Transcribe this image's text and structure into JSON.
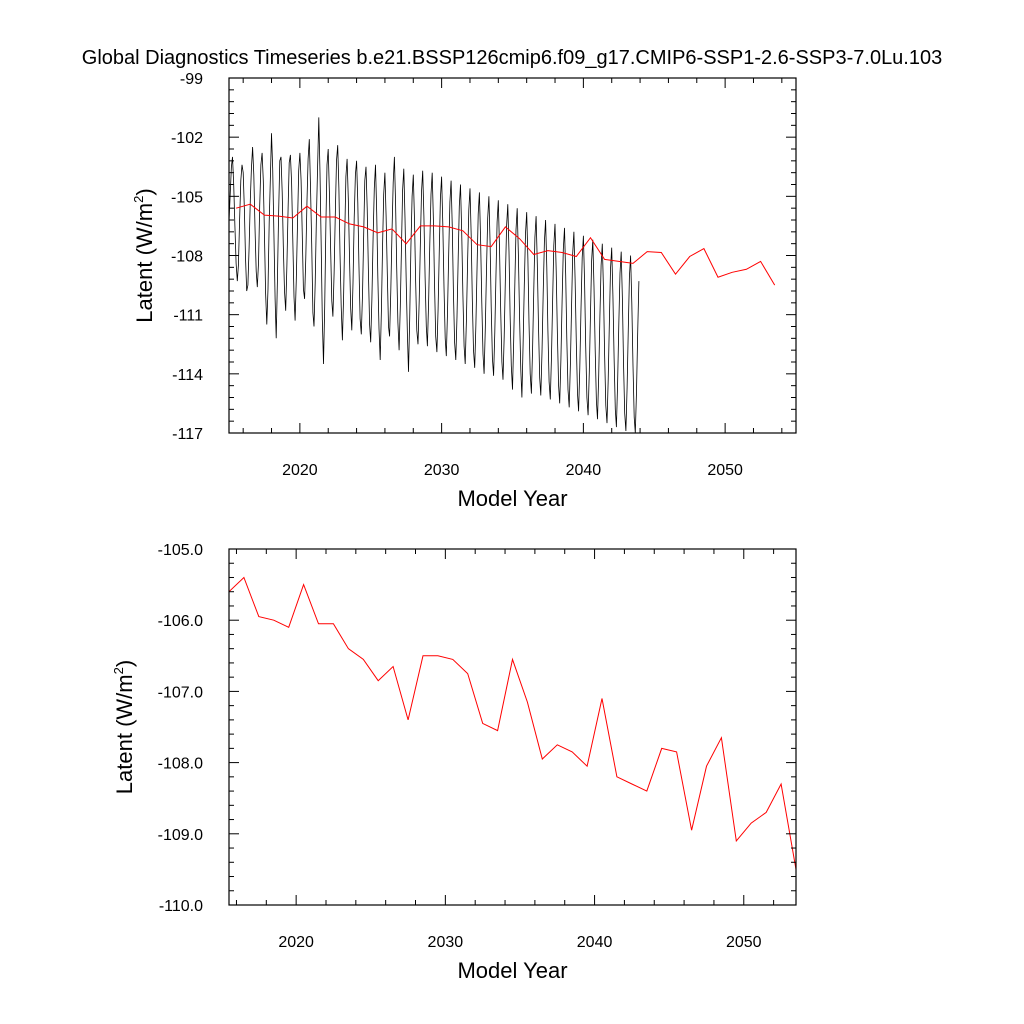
{
  "title": "Global Diagnostics Timeseries b.e21.BSSP126cmip6.f09_g17.CMIP6-SSP1-2.6-SSP3-7.0Lu.103",
  "colors": {
    "monthly": "#000000",
    "annual": "#ff0000",
    "axes": "#000000"
  },
  "chart_data": [
    {
      "type": "line",
      "xlabel": "Model Year",
      "ylabel": "Latent (W/m",
      "ylabel_sup": "2",
      "ylabel_tail": ")",
      "xlim": [
        2015,
        2055
      ],
      "ylim": [
        -117,
        -99
      ],
      "xticks": [
        2020,
        2030,
        2040,
        2050
      ],
      "xtick_labels": [
        "2020",
        "2030",
        "2040",
        "2050"
      ],
      "yticks": [
        -117,
        -114,
        -111,
        -108,
        -105,
        -102,
        -99
      ],
      "ytick_labels": [
        "-117",
        "-114",
        "-111",
        "-108",
        "-105",
        "-102",
        "-99"
      ],
      "series": [
        {
          "kind": "monthly",
          "start": 2015.0,
          "step": 0.083333,
          "values": [
            -106.3,
            -104.9,
            -103.5,
            -103.0,
            -104.4,
            -106.5,
            -108.4,
            -109.3,
            -108.5,
            -106.2,
            -104.2,
            -103.4,
            -103.8,
            -105.7,
            -108.1,
            -109.8,
            -109.5,
            -107.6,
            -105.2,
            -103.6,
            -102.5,
            -103.9,
            -106.6,
            -108.8,
            -109.6,
            -108.4,
            -105.5,
            -103.4,
            -102.8,
            -104.2,
            -106.8,
            -109.9,
            -111.5,
            -109.7,
            -106.3,
            -104.2,
            -101.8,
            -103.6,
            -106.9,
            -110.2,
            -112.2,
            -109.3,
            -105.9,
            -103.2,
            -103.0,
            -104.8,
            -107.5,
            -109.8,
            -110.8,
            -108.5,
            -105.6,
            -103.3,
            -102.9,
            -104.3,
            -107.2,
            -110.1,
            -111.3,
            -109.2,
            -106.4,
            -103.7,
            -102.8,
            -104.2,
            -106.8,
            -109.7,
            -110.2,
            -108.1,
            -105.2,
            -103.1,
            -102.1,
            -104.5,
            -107.4,
            -110.9,
            -111.6,
            -109.4,
            -106.1,
            -103.5,
            -101.0,
            -103.8,
            -107.2,
            -111.2,
            -113.5,
            -110.6,
            -106.4,
            -103.4,
            -102.6,
            -104.8,
            -107.6,
            -110.3,
            -111.1,
            -108.9,
            -105.9,
            -103.2,
            -102.4,
            -104.6,
            -107.9,
            -110.6,
            -112.3,
            -110.1,
            -106.8,
            -104.0,
            -103.1,
            -105.1,
            -108.1,
            -110.7,
            -111.8,
            -109.4,
            -106.1,
            -103.9,
            -103.2,
            -105.3,
            -108.4,
            -111.2,
            -112.0,
            -110.0,
            -106.9,
            -104.2,
            -103.5,
            -105.6,
            -108.8,
            -111.5,
            -112.4,
            -110.2,
            -107.1,
            -104.6,
            -103.4,
            -105.8,
            -109.0,
            -111.7,
            -113.3,
            -110.8,
            -107.4,
            -104.9,
            -103.8,
            -106.0,
            -108.9,
            -111.6,
            -112.1,
            -109.8,
            -106.8,
            -104.3,
            -103.0,
            -105.4,
            -108.6,
            -111.4,
            -112.8,
            -110.6,
            -107.5,
            -104.7,
            -103.6,
            -106.1,
            -109.3,
            -112.0,
            -113.9,
            -111.2,
            -107.6,
            -105.0,
            -103.9,
            -106.2,
            -109.2,
            -111.8,
            -112.5,
            -110.3,
            -107.3,
            -104.8,
            -103.7,
            -106.0,
            -109.1,
            -111.6,
            -112.6,
            -110.4,
            -107.4,
            -104.9,
            -103.8,
            -106.2,
            -109.4,
            -112.1,
            -112.9,
            -110.7,
            -107.7,
            -105.1,
            -104.0,
            -106.4,
            -109.6,
            -112.2,
            -113.1,
            -110.9,
            -107.9,
            -105.3,
            -104.2,
            -106.6,
            -109.8,
            -112.4,
            -113.3,
            -111.1,
            -108.1,
            -105.5,
            -104.4,
            -106.8,
            -110.0,
            -112.6,
            -113.5,
            -111.3,
            -108.3,
            -105.7,
            -104.6,
            -107.0,
            -110.2,
            -112.8,
            -113.7,
            -111.5,
            -108.5,
            -105.9,
            -104.8,
            -107.2,
            -110.4,
            -113.0,
            -114.0,
            -111.7,
            -108.7,
            -106.1,
            -105.0,
            -107.4,
            -110.6,
            -113.2,
            -114.1,
            -111.9,
            -108.9,
            -106.3,
            -105.2,
            -107.6,
            -110.8,
            -113.4,
            -114.3,
            -112.1,
            -109.1,
            -106.5,
            -105.4,
            -107.8,
            -111.0,
            -113.6,
            -114.8,
            -112.3,
            -109.3,
            -106.7,
            -105.6,
            -108.0,
            -111.2,
            -113.8,
            -115.2,
            -112.5,
            -109.5,
            -106.9,
            -105.8,
            -108.2,
            -111.4,
            -114.0,
            -115.0,
            -112.7,
            -109.7,
            -107.1,
            -106.0,
            -108.4,
            -111.6,
            -114.2,
            -115.1,
            -112.9,
            -109.9,
            -107.3,
            -106.2,
            -108.6,
            -111.8,
            -114.4,
            -115.3,
            -113.1,
            -110.1,
            -107.5,
            -106.4,
            -108.8,
            -112.0,
            -114.6,
            -115.5,
            -113.3,
            -110.3,
            -107.7,
            -106.6,
            -109.0,
            -112.2,
            -114.8,
            -115.7,
            -113.5,
            -110.5,
            -107.9,
            -106.8,
            -109.2,
            -112.4,
            -115.0,
            -115.9,
            -113.7,
            -110.7,
            -108.1,
            -107.0,
            -109.4,
            -112.6,
            -115.2,
            -116.1,
            -113.9,
            -110.9,
            -108.3,
            -107.2,
            -109.6,
            -112.8,
            -115.4,
            -116.3,
            -114.1,
            -111.1,
            -108.5,
            -107.4,
            -109.8,
            -113.0,
            -115.6,
            -116.5,
            -114.3,
            -111.3,
            -108.7,
            -107.6,
            -110.0,
            -113.2,
            -115.8,
            -116.7,
            -114.5,
            -111.5,
            -108.9,
            -107.8,
            -110.2,
            -113.4,
            -116.0,
            -116.9,
            -114.7,
            -111.7,
            -109.1,
            -108.0,
            -110.4,
            -113.6,
            -116.2,
            -117.0,
            -114.9,
            -111.9,
            -109.3
          ]
        },
        {
          "kind": "annual",
          "x": [
            2015.5,
            2016.5,
            2017.5,
            2018.5,
            2019.5,
            2020.5,
            2021.5,
            2022.5,
            2023.5,
            2024.5,
            2025.5,
            2026.5,
            2027.5,
            2028.5,
            2029.5,
            2030.5,
            2031.5,
            2032.5,
            2033.5,
            2034.5,
            2035.5,
            2036.5,
            2037.5,
            2038.5,
            2039.5,
            2040.5,
            2041.5,
            2042.5,
            2043.5,
            2044.5,
            2045.5,
            2046.5,
            2047.5,
            2048.5,
            2049.5,
            2050.5,
            2051.5,
            2052.5,
            2053.5
          ],
          "values": [
            -105.6,
            -105.4,
            -105.95,
            -106.0,
            -106.1,
            -105.5,
            -106.05,
            -106.05,
            -106.4,
            -106.55,
            -106.85,
            -106.65,
            -107.4,
            -106.5,
            -106.5,
            -106.55,
            -106.75,
            -107.45,
            -107.55,
            -106.55,
            -107.15,
            -107.95,
            -107.75,
            -107.85,
            -108.05,
            -107.1,
            -108.2,
            -108.3,
            -108.4,
            -107.8,
            -107.85,
            -108.95,
            -108.05,
            -107.65,
            -109.1,
            -108.85,
            -108.7,
            -108.3,
            -109.5
          ]
        }
      ]
    },
    {
      "type": "line",
      "xlabel": "Model Year",
      "ylabel": "Latent (W/m",
      "ylabel_sup": "2",
      "ylabel_tail": ")",
      "xlim": [
        2015.5,
        2053.5
      ],
      "ylim": [
        -110,
        -105
      ],
      "xticks": [
        2020,
        2030,
        2040,
        2050
      ],
      "xtick_labels": [
        "2020",
        "2030",
        "2040",
        "2050"
      ],
      "yticks": [
        -110,
        -109,
        -108,
        -107,
        -106,
        -105
      ],
      "ytick_labels": [
        "-110.0",
        "-109.0",
        "-108.0",
        "-107.0",
        "-106.0",
        "-105.0"
      ],
      "series": [
        {
          "kind": "annual",
          "x": [
            2015.5,
            2016.5,
            2017.5,
            2018.5,
            2019.5,
            2020.5,
            2021.5,
            2022.5,
            2023.5,
            2024.5,
            2025.5,
            2026.5,
            2027.5,
            2028.5,
            2029.5,
            2030.5,
            2031.5,
            2032.5,
            2033.5,
            2034.5,
            2035.5,
            2036.5,
            2037.5,
            2038.5,
            2039.5,
            2040.5,
            2041.5,
            2042.5,
            2043.5,
            2044.5,
            2045.5,
            2046.5,
            2047.5,
            2048.5,
            2049.5,
            2050.5,
            2051.5,
            2052.5,
            2053.5
          ],
          "values": [
            -105.6,
            -105.4,
            -105.95,
            -106.0,
            -106.1,
            -105.5,
            -106.05,
            -106.05,
            -106.4,
            -106.55,
            -106.85,
            -106.65,
            -107.4,
            -106.5,
            -106.5,
            -106.55,
            -106.75,
            -107.45,
            -107.55,
            -106.55,
            -107.15,
            -107.95,
            -107.75,
            -107.85,
            -108.05,
            -107.1,
            -108.2,
            -108.3,
            -108.4,
            -107.8,
            -107.85,
            -108.95,
            -108.05,
            -107.65,
            -109.1,
            -108.85,
            -108.7,
            -108.3,
            -109.5
          ]
        }
      ]
    }
  ]
}
